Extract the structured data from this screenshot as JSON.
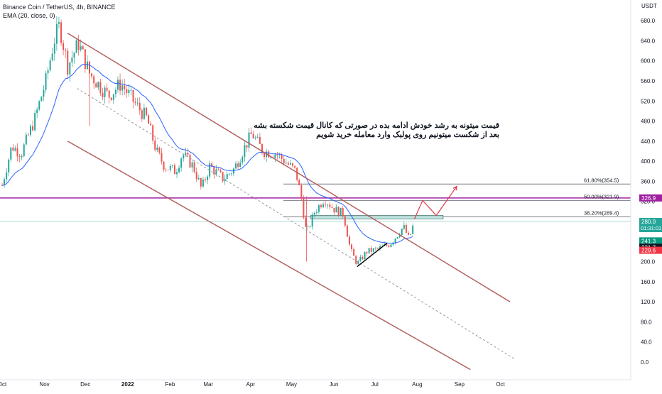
{
  "legend": {
    "symbol": "Binance Coin / TetherUS, 4h, BINANCE",
    "indicator": "EMA (20, close, 0)"
  },
  "currency": "USDT",
  "annotation": {
    "line1": "قیمت میتونه به رشد خودش ادامه بده در صورتی که کانال قیمت شکسته بشه",
    "line2": "بعد از شکست میتونیم روی پولبک وارد معامله خرید شویم"
  },
  "colors": {
    "candle_up": "#26a69a",
    "candle_down": "#ef5350",
    "ema": "#2962ff",
    "channel": "#b05a5a",
    "midline": "#9598a1",
    "fib": "#787b86",
    "horizontal_level": "#a020a0",
    "projection": "#e0394a"
  },
  "chart_data": {
    "type": "candlestick",
    "title": "Binance Coin / TetherUS, 4h, BINANCE",
    "indicator": "EMA (20, close, 0)",
    "y_unit": "USDT",
    "ylim": [
      -20,
      700
    ],
    "y_ticks": [
      "680.0",
      "640.0",
      "600.0",
      "560.0",
      "520.0",
      "480.0",
      "440.0",
      "400.0",
      "360.0",
      "320.0",
      "280.0",
      "240.0",
      "200.0",
      "160.0",
      "120.0",
      "80.0",
      "40.0",
      "0.0"
    ],
    "x_ticks": [
      "Oct",
      "Nov",
      "Dec",
      "2022",
      "Feb",
      "Mar",
      "Apr",
      "May",
      "Jun",
      "Jul",
      "Aug",
      "Sep",
      "Oct"
    ],
    "price_path": [
      {
        "date": "2021-10-01",
        "price": 352
      },
      {
        "date": "2021-10-08",
        "price": 430
      },
      {
        "date": "2021-10-15",
        "price": 415
      },
      {
        "date": "2021-10-25",
        "price": 485
      },
      {
        "date": "2021-11-02",
        "price": 560
      },
      {
        "date": "2021-11-08",
        "price": 640
      },
      {
        "date": "2021-11-12",
        "price": 670
      },
      {
        "date": "2021-11-18",
        "price": 590
      },
      {
        "date": "2021-11-26",
        "price": 635
      },
      {
        "date": "2021-12-04",
        "price": 575
      },
      {
        "date": "2021-12-10",
        "price": 555
      },
      {
        "date": "2021-12-18",
        "price": 530
      },
      {
        "date": "2021-12-27",
        "price": 555
      },
      {
        "date": "2022-01-05",
        "price": 520
      },
      {
        "date": "2022-01-15",
        "price": 485
      },
      {
        "date": "2022-01-22",
        "price": 420
      },
      {
        "date": "2022-01-28",
        "price": 390
      },
      {
        "date": "2022-02-05",
        "price": 380
      },
      {
        "date": "2022-02-10",
        "price": 415
      },
      {
        "date": "2022-02-18",
        "price": 390
      },
      {
        "date": "2022-02-24",
        "price": 345
      },
      {
        "date": "2022-03-02",
        "price": 390
      },
      {
        "date": "2022-03-12",
        "price": 365
      },
      {
        "date": "2022-03-20",
        "price": 385
      },
      {
        "date": "2022-03-28",
        "price": 430
      },
      {
        "date": "2022-04-02",
        "price": 455
      },
      {
        "date": "2022-04-10",
        "price": 420
      },
      {
        "date": "2022-04-20",
        "price": 415
      },
      {
        "date": "2022-04-28",
        "price": 395
      },
      {
        "date": "2022-05-04",
        "price": 380
      },
      {
        "date": "2022-05-08",
        "price": 330
      },
      {
        "date": "2022-05-12",
        "price": 255
      },
      {
        "date": "2022-05-18",
        "price": 300
      },
      {
        "date": "2022-05-25",
        "price": 325
      },
      {
        "date": "2022-06-01",
        "price": 305
      },
      {
        "date": "2022-06-08",
        "price": 295
      },
      {
        "date": "2022-06-13",
        "price": 225
      },
      {
        "date": "2022-06-18",
        "price": 195
      },
      {
        "date": "2022-06-25",
        "price": 220
      },
      {
        "date": "2022-07-03",
        "price": 225
      },
      {
        "date": "2022-07-12",
        "price": 235
      },
      {
        "date": "2022-07-18",
        "price": 255
      },
      {
        "date": "2022-07-22",
        "price": 270
      },
      {
        "date": "2022-07-26",
        "price": 245
      },
      {
        "date": "2022-07-30",
        "price": 280
      }
    ],
    "current_price": "280.0",
    "countdown": "01:31:01",
    "price_badges": [
      {
        "label": "326.9",
        "value": 326.9,
        "color": "#a020a0"
      },
      {
        "label": "241.3",
        "value": 241.3,
        "color": "#089981"
      },
      {
        "label": "231.7",
        "value": 231.7,
        "color": "#131722"
      },
      {
        "label": "229.6",
        "value": 229.6,
        "color": "#f23645"
      }
    ],
    "horizontal_level": {
      "value": 326.9,
      "color": "#a020a0"
    },
    "fib_levels": [
      {
        "label": "61.80%(354.5)",
        "value": 354.5
      },
      {
        "label": "50.00%(321.9)",
        "value": 321.9
      },
      {
        "label": "38.20%(289.4)",
        "value": 289.4
      }
    ],
    "channel": {
      "upper": [
        {
          "date": "2021-11-18",
          "price": 655
        },
        {
          "date": "2022-10-08",
          "price": 120
        }
      ],
      "lower": [
        {
          "date": "2021-11-18",
          "price": 440
        },
        {
          "date": "2022-09-09",
          "price": -15
        }
      ],
      "midline": [
        {
          "date": "2021-11-25",
          "price": 545
        },
        {
          "date": "2022-10-12",
          "price": 5
        }
      ]
    },
    "support_trendline": [
      {
        "date": "2022-06-18",
        "price": 190
      },
      {
        "date": "2022-07-10",
        "price": 237
      }
    ],
    "projection_path": [
      {
        "date": "2022-07-30",
        "price": 285
      },
      {
        "date": "2022-08-05",
        "price": 322
      },
      {
        "date": "2022-08-15",
        "price": 292
      },
      {
        "date": "2022-08-30",
        "price": 350
      }
    ]
  }
}
